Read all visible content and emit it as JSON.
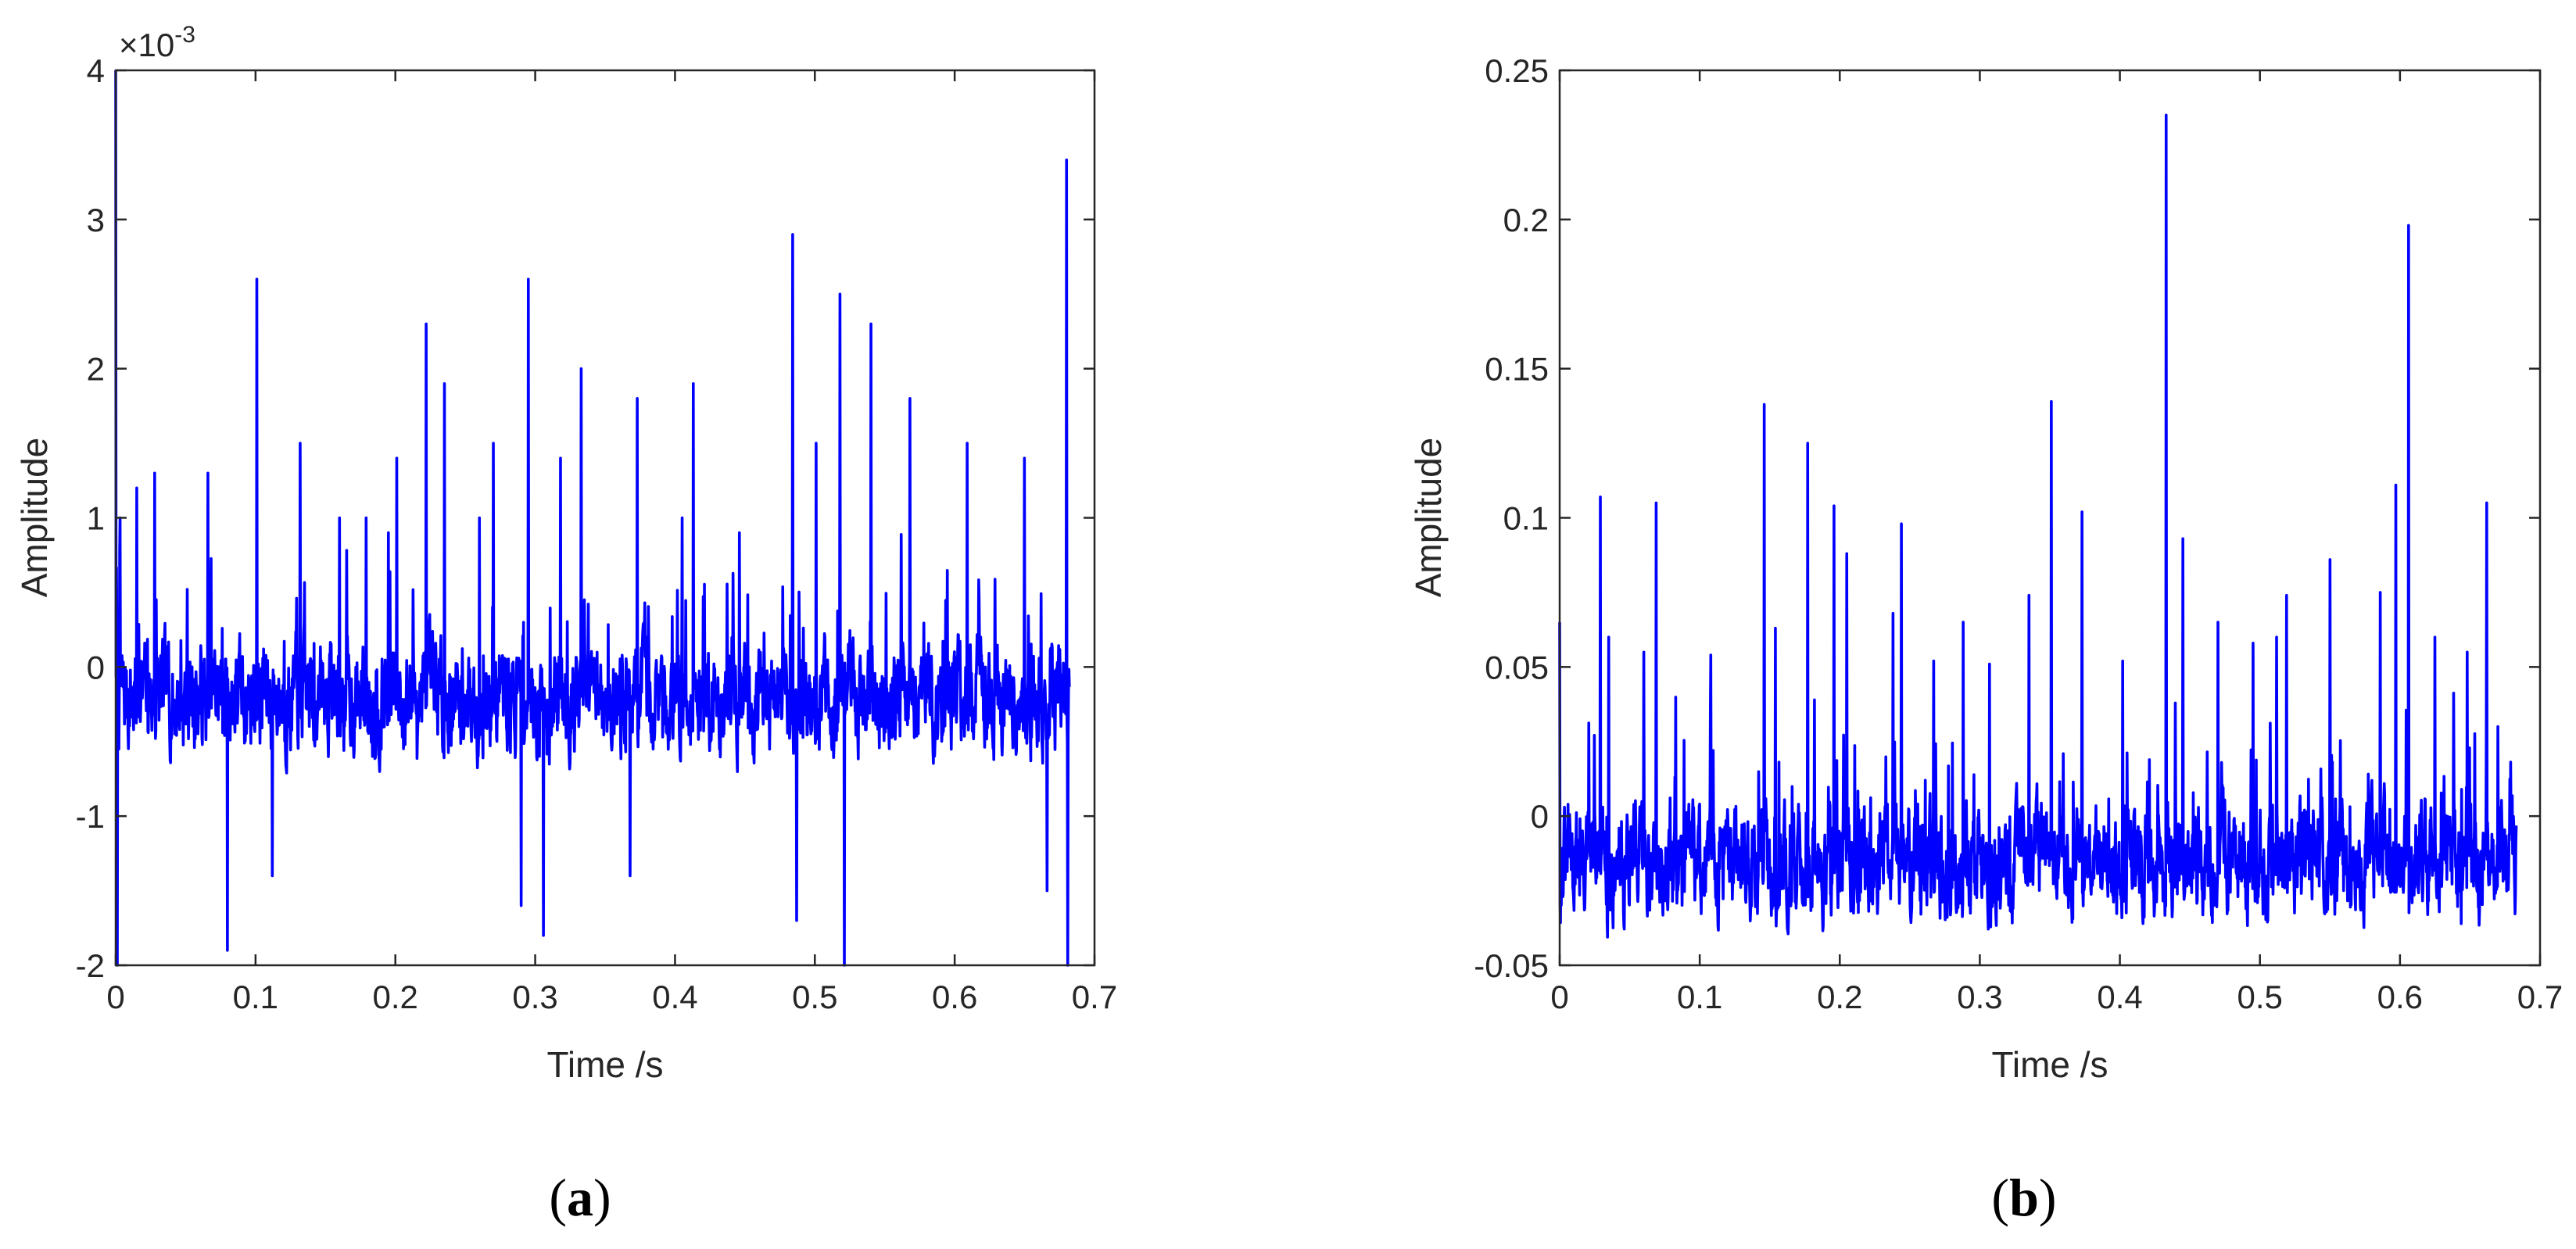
{
  "style": {
    "line_color": "#0000ff",
    "axis_color": "#262626",
    "background": "#ffffff"
  },
  "chart_data": [
    {
      "type": "line",
      "panel_label": "a",
      "xlabel": "Time /s",
      "ylabel": "Amplitude",
      "y_exponent_label": "×10",
      "y_exponent_power": "-3",
      "xlim": [
        0,
        0.7
      ],
      "ylim": [
        -0.002,
        0.004
      ],
      "xticks": [
        0,
        0.1,
        0.2,
        0.3,
        0.4,
        0.5,
        0.6,
        0.7
      ],
      "xtick_labels": [
        "0",
        "0.1",
        "0.2",
        "0.3",
        "0.4",
        "0.5",
        "0.6",
        "0.7"
      ],
      "yticks": [
        -0.002,
        -0.001,
        0,
        0.001,
        0.002,
        0.003,
        0.004
      ],
      "ytick_labels": [
        "-2",
        "-1",
        "0",
        "1",
        "2",
        "3",
        "4"
      ],
      "grid": false,
      "x_end": 0.682,
      "baseline": -0.0002,
      "peaks": [
        [
          0.0,
          0.004
        ],
        [
          0.001,
          -0.002
        ],
        [
          0.003,
          0.001
        ],
        [
          0.015,
          0.0012
        ],
        [
          0.028,
          0.0013
        ],
        [
          0.066,
          0.0013
        ],
        [
          0.08,
          -0.0019
        ],
        [
          0.101,
          0.0026
        ],
        [
          0.112,
          -0.0014
        ],
        [
          0.132,
          0.0015
        ],
        [
          0.16,
          0.001
        ],
        [
          0.179,
          0.001
        ],
        [
          0.195,
          0.0009
        ],
        [
          0.201,
          0.0014
        ],
        [
          0.222,
          0.0023
        ],
        [
          0.235,
          0.0019
        ],
        [
          0.26,
          0.001
        ],
        [
          0.27,
          0.0015
        ],
        [
          0.295,
          0.0026
        ],
        [
          0.29,
          -0.0016
        ],
        [
          0.306,
          -0.0018
        ],
        [
          0.318,
          0.0014
        ],
        [
          0.333,
          0.002
        ],
        [
          0.368,
          -0.0014
        ],
        [
          0.373,
          0.0018
        ],
        [
          0.405,
          0.001
        ],
        [
          0.413,
          0.0019
        ],
        [
          0.446,
          0.0009
        ],
        [
          0.484,
          0.0029
        ],
        [
          0.487,
          -0.0017
        ],
        [
          0.501,
          0.0015
        ],
        [
          0.518,
          0.0025
        ],
        [
          0.521,
          -0.002
        ],
        [
          0.54,
          0.0023
        ],
        [
          0.568,
          0.0018
        ],
        [
          0.609,
          0.0015
        ],
        [
          0.65,
          0.0014
        ],
        [
          0.666,
          -0.0015
        ],
        [
          0.68,
          0.0034
        ],
        [
          0.681,
          -0.002
        ]
      ]
    },
    {
      "type": "line",
      "panel_label": "b",
      "xlabel": "Time /s",
      "ylabel": "Amplitude",
      "xlim": [
        0,
        0.7
      ],
      "ylim": [
        -0.05,
        0.25
      ],
      "xticks": [
        0,
        0.1,
        0.2,
        0.3,
        0.4,
        0.5,
        0.6,
        0.7
      ],
      "xtick_labels": [
        "0",
        "0.1",
        "0.2",
        "0.3",
        "0.4",
        "0.5",
        "0.6",
        "0.7"
      ],
      "yticks": [
        -0.05,
        0,
        0.05,
        0.1,
        0.15,
        0.2,
        0.25
      ],
      "ytick_labels": [
        "-0.05",
        "0",
        "0.05",
        "0.1",
        "0.15",
        "0.2",
        "0.25"
      ],
      "grid": false,
      "x_end": 0.683,
      "baseline": -0.015,
      "peaks": [
        [
          0.0,
          0.065
        ],
        [
          0.029,
          0.107
        ],
        [
          0.035,
          0.06
        ],
        [
          0.06,
          0.055
        ],
        [
          0.069,
          0.105
        ],
        [
          0.108,
          0.054
        ],
        [
          0.146,
          0.138
        ],
        [
          0.154,
          0.063
        ],
        [
          0.177,
          0.125
        ],
        [
          0.196,
          0.104
        ],
        [
          0.205,
          0.088
        ],
        [
          0.238,
          0.068
        ],
        [
          0.244,
          0.098
        ],
        [
          0.267,
          0.052
        ],
        [
          0.288,
          0.065
        ],
        [
          0.307,
          0.051
        ],
        [
          0.335,
          0.074
        ],
        [
          0.351,
          0.139
        ],
        [
          0.373,
          0.102
        ],
        [
          0.402,
          0.052
        ],
        [
          0.433,
          0.235
        ],
        [
          0.445,
          0.093
        ],
        [
          0.47,
          0.065
        ],
        [
          0.495,
          0.058
        ],
        [
          0.512,
          0.06
        ],
        [
          0.519,
          0.074
        ],
        [
          0.55,
          0.086
        ],
        [
          0.586,
          0.075
        ],
        [
          0.597,
          0.111
        ],
        [
          0.606,
          0.198
        ],
        [
          0.625,
          0.06
        ],
        [
          0.648,
          0.055
        ],
        [
          0.662,
          0.105
        ],
        [
          0.67,
          0.03
        ]
      ]
    }
  ]
}
